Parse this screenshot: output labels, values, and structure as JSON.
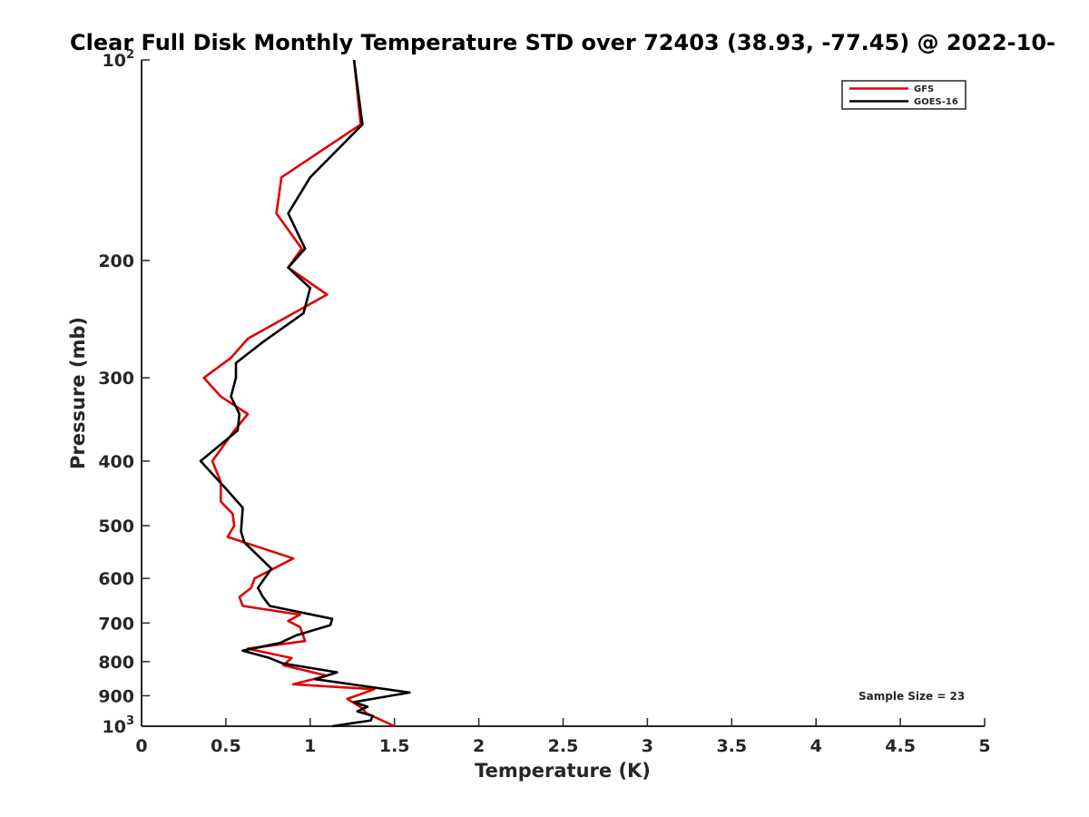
{
  "chart_data": {
    "type": "line",
    "title": "Clear Full Disk Monthly Temperature STD over 72403 (38.93, -77.45) @ 2022-10-",
    "xlabel": "Temperature (K)",
    "ylabel": "Pressure (mb)",
    "xlim": [
      0,
      5
    ],
    "ylim": [
      100,
      1000
    ],
    "y_scale": "log",
    "y_reversed": true,
    "grid": false,
    "legend_position": "top-right",
    "x_ticks": [
      0,
      0.5,
      1,
      1.5,
      2,
      2.5,
      3,
      3.5,
      4,
      4.5,
      5
    ],
    "x_tick_labels": [
      "0",
      "0.5",
      "1",
      "1.5",
      "2",
      "2.5",
      "3",
      "3.5",
      "4",
      "4.5",
      "5"
    ],
    "y_ticks": [
      100,
      200,
      300,
      400,
      500,
      600,
      700,
      800,
      900,
      1000
    ],
    "y_tick_labels": [
      {
        "base": "10",
        "exp": "2"
      },
      {
        "base": "200",
        "exp": ""
      },
      {
        "base": "300",
        "exp": ""
      },
      {
        "base": "400",
        "exp": ""
      },
      {
        "base": "500",
        "exp": ""
      },
      {
        "base": "600",
        "exp": ""
      },
      {
        "base": "700",
        "exp": ""
      },
      {
        "base": "800",
        "exp": ""
      },
      {
        "base": "900",
        "exp": ""
      },
      {
        "base": "10",
        "exp": "3"
      }
    ],
    "series": [
      {
        "name": "GFS",
        "color": "#e00000",
        "points": [
          [
            1.26,
            100
          ],
          [
            1.3,
            125
          ],
          [
            0.83,
            150
          ],
          [
            0.8,
            170
          ],
          [
            0.95,
            192
          ],
          [
            0.87,
            205
          ],
          [
            1.1,
            225
          ],
          [
            0.63,
            262
          ],
          [
            0.53,
            280
          ],
          [
            0.37,
            300
          ],
          [
            0.47,
            320
          ],
          [
            0.63,
            340
          ],
          [
            0.55,
            360
          ],
          [
            0.42,
            400
          ],
          [
            0.47,
            430
          ],
          [
            0.47,
            460
          ],
          [
            0.54,
            480
          ],
          [
            0.55,
            500
          ],
          [
            0.51,
            520
          ],
          [
            0.9,
            560
          ],
          [
            0.67,
            600
          ],
          [
            0.65,
            620
          ],
          [
            0.58,
            640
          ],
          [
            0.6,
            660
          ],
          [
            0.94,
            680
          ],
          [
            0.87,
            695
          ],
          [
            0.94,
            710
          ],
          [
            0.97,
            745
          ],
          [
            0.63,
            765
          ],
          [
            0.89,
            790
          ],
          [
            0.84,
            810
          ],
          [
            1.1,
            840
          ],
          [
            0.9,
            865
          ],
          [
            1.38,
            880
          ],
          [
            1.22,
            910
          ],
          [
            1.31,
            940
          ],
          [
            1.33,
            955
          ],
          [
            1.5,
            1000
          ]
        ]
      },
      {
        "name": "GOES-16",
        "color": "#000000",
        "points": [
          [
            1.26,
            100
          ],
          [
            1.31,
            125
          ],
          [
            1.0,
            150
          ],
          [
            0.87,
            170
          ],
          [
            0.97,
            192
          ],
          [
            0.87,
            205
          ],
          [
            1.0,
            220
          ],
          [
            0.96,
            240
          ],
          [
            0.72,
            265
          ],
          [
            0.56,
            285
          ],
          [
            0.56,
            300
          ],
          [
            0.53,
            320
          ],
          [
            0.58,
            340
          ],
          [
            0.57,
            360
          ],
          [
            0.35,
            400
          ],
          [
            0.5,
            440
          ],
          [
            0.6,
            470
          ],
          [
            0.59,
            510
          ],
          [
            0.61,
            530
          ],
          [
            0.77,
            580
          ],
          [
            0.69,
            620
          ],
          [
            0.72,
            640
          ],
          [
            0.76,
            660
          ],
          [
            1.13,
            690
          ],
          [
            1.12,
            705
          ],
          [
            0.92,
            730
          ],
          [
            0.82,
            750
          ],
          [
            0.6,
            770
          ],
          [
            0.76,
            790
          ],
          [
            0.84,
            805
          ],
          [
            1.16,
            830
          ],
          [
            1.03,
            850
          ],
          [
            1.59,
            890
          ],
          [
            1.26,
            920
          ],
          [
            1.34,
            935
          ],
          [
            1.28,
            950
          ],
          [
            1.37,
            965
          ],
          [
            1.36,
            980
          ],
          [
            1.13,
            1000
          ]
        ]
      }
    ],
    "annotation": "Sample Size = 23"
  }
}
